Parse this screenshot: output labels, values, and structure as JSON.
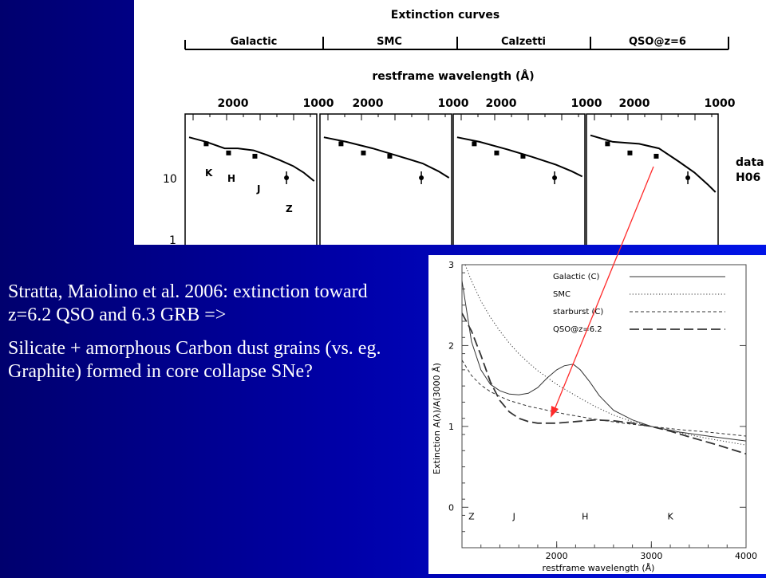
{
  "slide": {
    "paragraph_1": "Stratta, Maiolino et al. 2006: extinction toward z=6.2 QSO and 6.3 GRB =>",
    "paragraph_2": "Silicate + amorphous Carbon dust grains (vs. eg. Graphite) formed in core collapse SNe?"
  },
  "colors": {
    "background_dark": "#00006e",
    "background_light": "#0014e8",
    "arrow": "#ff2a2a",
    "text": "#ffffff"
  },
  "chart_data": [
    {
      "type": "line",
      "title": "Extinction curves",
      "xlabel": "restframe wavelength (Å)",
      "panels": [
        "Galactic",
        "SMC",
        "Calzetti",
        "QSO@z=6"
      ],
      "x_ticks": [
        "2000",
        "1000"
      ],
      "y_ticks": [
        "10",
        "1"
      ],
      "side_label": [
        "data",
        "H06"
      ],
      "band_labels": [
        "K",
        "H",
        "J",
        "Z"
      ],
      "data_points_log_flux": [
        {
          "band": "K",
          "value": 1.52
        },
        {
          "band": "H",
          "value": 1.38
        },
        {
          "band": "J",
          "value": 1.33
        },
        {
          "band": "Z",
          "value": 1.0
        }
      ]
    },
    {
      "type": "line",
      "xlabel": "restframe wavelength (Å)",
      "ylabel": "Extinction A(λ)/A(3000 Å)",
      "xlim": [
        1000,
        4000
      ],
      "ylim": [
        -0.5,
        3
      ],
      "x_ticks": [
        2000,
        3000,
        4000
      ],
      "y_ticks": [
        0,
        1,
        2,
        3
      ],
      "band_labels": [
        {
          "label": "Z",
          "x": 1100
        },
        {
          "label": "J",
          "x": 1550
        },
        {
          "label": "H",
          "x": 2300
        },
        {
          "label": "K",
          "x": 3200
        }
      ],
      "legend_position": "top-right",
      "series": [
        {
          "name": "Galactic (C)",
          "style": "solid",
          "points": [
            [
              1000,
              2.8
            ],
            [
              1100,
              2.05
            ],
            [
              1200,
              1.7
            ],
            [
              1300,
              1.52
            ],
            [
              1400,
              1.44
            ],
            [
              1500,
              1.4
            ],
            [
              1600,
              1.39
            ],
            [
              1700,
              1.41
            ],
            [
              1800,
              1.48
            ],
            [
              1900,
              1.6
            ],
            [
              2000,
              1.7
            ],
            [
              2080,
              1.75
            ],
            [
              2175,
              1.77
            ],
            [
              2250,
              1.7
            ],
            [
              2350,
              1.55
            ],
            [
              2450,
              1.38
            ],
            [
              2600,
              1.2
            ],
            [
              2800,
              1.08
            ],
            [
              3000,
              1.0
            ],
            [
              3300,
              0.93
            ],
            [
              3600,
              0.88
            ],
            [
              4000,
              0.82
            ]
          ]
        },
        {
          "name": "SMC",
          "style": "dotted",
          "points": [
            [
              1000,
              3.1
            ],
            [
              1100,
              2.8
            ],
            [
              1200,
              2.55
            ],
            [
              1300,
              2.35
            ],
            [
              1400,
              2.18
            ],
            [
              1500,
              2.03
            ],
            [
              1600,
              1.9
            ],
            [
              1700,
              1.79
            ],
            [
              1800,
              1.69
            ],
            [
              2000,
              1.52
            ],
            [
              2200,
              1.38
            ],
            [
              2400,
              1.25
            ],
            [
              2600,
              1.14
            ],
            [
              2800,
              1.06
            ],
            [
              3000,
              1.0
            ],
            [
              3300,
              0.92
            ],
            [
              3600,
              0.85
            ],
            [
              4000,
              0.77
            ]
          ]
        },
        {
          "name": "starburst (C)",
          "style": "short-dash",
          "points": [
            [
              1000,
              1.82
            ],
            [
              1100,
              1.63
            ],
            [
              1200,
              1.51
            ],
            [
              1300,
              1.43
            ],
            [
              1400,
              1.37
            ],
            [
              1500,
              1.32
            ],
            [
              1700,
              1.25
            ],
            [
              1900,
              1.2
            ],
            [
              2100,
              1.15
            ],
            [
              2400,
              1.09
            ],
            [
              2700,
              1.04
            ],
            [
              3000,
              1.0
            ],
            [
              3300,
              0.96
            ],
            [
              3600,
              0.93
            ],
            [
              4000,
              0.88
            ]
          ]
        },
        {
          "name": "QSO@z=6.2",
          "style": "long-dash",
          "points": [
            [
              1000,
              2.4
            ],
            [
              1100,
              2.18
            ],
            [
              1200,
              1.88
            ],
            [
              1300,
              1.55
            ],
            [
              1400,
              1.32
            ],
            [
              1500,
              1.18
            ],
            [
              1600,
              1.1
            ],
            [
              1700,
              1.06
            ],
            [
              1800,
              1.04
            ],
            [
              2000,
              1.04
            ],
            [
              2200,
              1.06
            ],
            [
              2400,
              1.08
            ],
            [
              2600,
              1.07
            ],
            [
              2800,
              1.04
            ],
            [
              3000,
              1.0
            ],
            [
              3200,
              0.94
            ],
            [
              3400,
              0.87
            ],
            [
              3700,
              0.77
            ],
            [
              4000,
              0.66
            ]
          ]
        }
      ]
    }
  ]
}
